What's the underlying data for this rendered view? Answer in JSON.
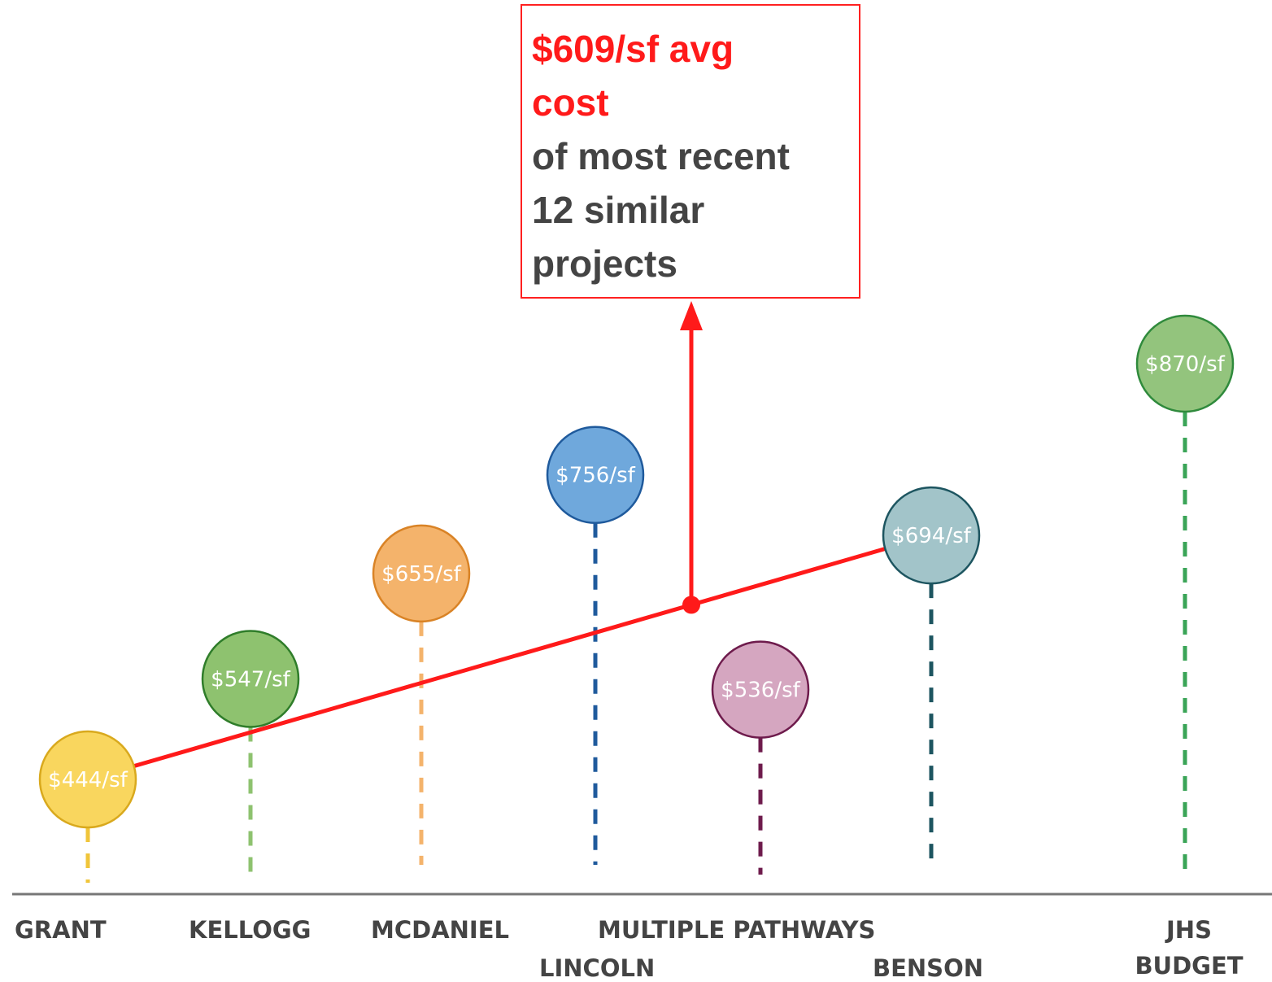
{
  "chart_data": {
    "type": "scatter",
    "unit": "$/sf",
    "points": [
      {
        "category": "GRANT",
        "label": "$444/sf",
        "value": 444,
        "color": "#f9d65e",
        "stroke": "#d9a91d",
        "stem": "#f0c53a"
      },
      {
        "category": "KELLOGG",
        "label": "$547/sf",
        "value": 547,
        "color": "#8ec26f",
        "stroke": "#2f7d2a",
        "stem": "#8ec26f"
      },
      {
        "category": "MCDANIEL",
        "label": "$655/sf",
        "value": 655,
        "color": "#f4b36b",
        "stroke": "#d98326",
        "stem": "#f4b36b"
      },
      {
        "category": "LINCOLN",
        "label": "$756/sf",
        "value": 756,
        "color": "#6fa8dc",
        "stroke": "#1f5a9c",
        "stem": "#1f5a9c"
      },
      {
        "category": "MULTIPLE PATHWAYS",
        "label": "$536/sf",
        "value": 536,
        "color": "#d5a6c0",
        "stroke": "#6e1b4c",
        "stem": "#6e1b4c"
      },
      {
        "category": "BENSON",
        "label": "$694/sf",
        "value": 694,
        "color": "#a2c4c9",
        "stroke": "#1d5560",
        "stem": "#1d5560"
      },
      {
        "category": "JHS BUDGET",
        "label": "$870/sf",
        "value": 870,
        "color": "#93c47d",
        "stroke": "#2f8a3c",
        "stem": "#3aa457"
      }
    ],
    "trendline": {
      "from": 444,
      "to": 694,
      "color": "#ff1a1a"
    },
    "average_marker": {
      "value": 609,
      "color": "#ff1a1a"
    }
  },
  "callout": {
    "highlight_line1": "$609/sf avg",
    "highlight_line2": "cost",
    "body_line1": "of most recent",
    "body_line2": "12 similar",
    "body_line3": "projects"
  },
  "axis_color": "#777777"
}
